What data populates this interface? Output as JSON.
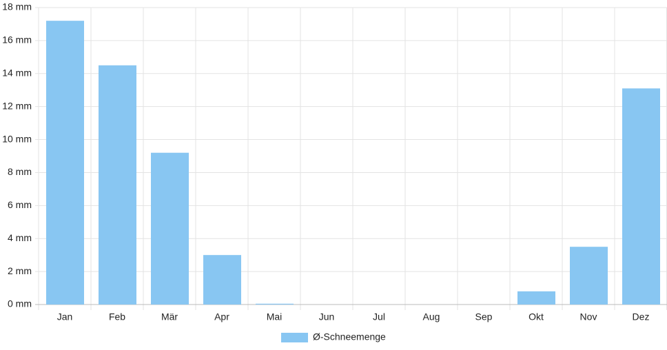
{
  "chart_data": {
    "type": "bar",
    "categories": [
      "Jan",
      "Feb",
      "Mär",
      "Apr",
      "Mai",
      "Jun",
      "Jul",
      "Aug",
      "Sep",
      "Okt",
      "Nov",
      "Dez"
    ],
    "series": [
      {
        "name": "Ø-Schneemenge",
        "color": "#88c6f2",
        "values": [
          17.2,
          14.5,
          9.2,
          3.0,
          0.05,
          0,
          0,
          0,
          0,
          0.8,
          3.5,
          13.1
        ]
      }
    ],
    "ylim": [
      0,
      18
    ],
    "yticks": [
      {
        "value": 0,
        "label": "0 mm"
      },
      {
        "value": 2,
        "label": "2 mm"
      },
      {
        "value": 4,
        "label": "4 mm"
      },
      {
        "value": 6,
        "label": "6 mm"
      },
      {
        "value": 8,
        "label": "8 mm"
      },
      {
        "value": 10,
        "label": "10 mm"
      },
      {
        "value": 12,
        "label": "12 mm"
      },
      {
        "value": 14,
        "label": "14 mm"
      },
      {
        "value": 16,
        "label": "16 mm"
      },
      {
        "value": 18,
        "label": "18 mm"
      }
    ],
    "grid": true,
    "legend": "bottom"
  }
}
